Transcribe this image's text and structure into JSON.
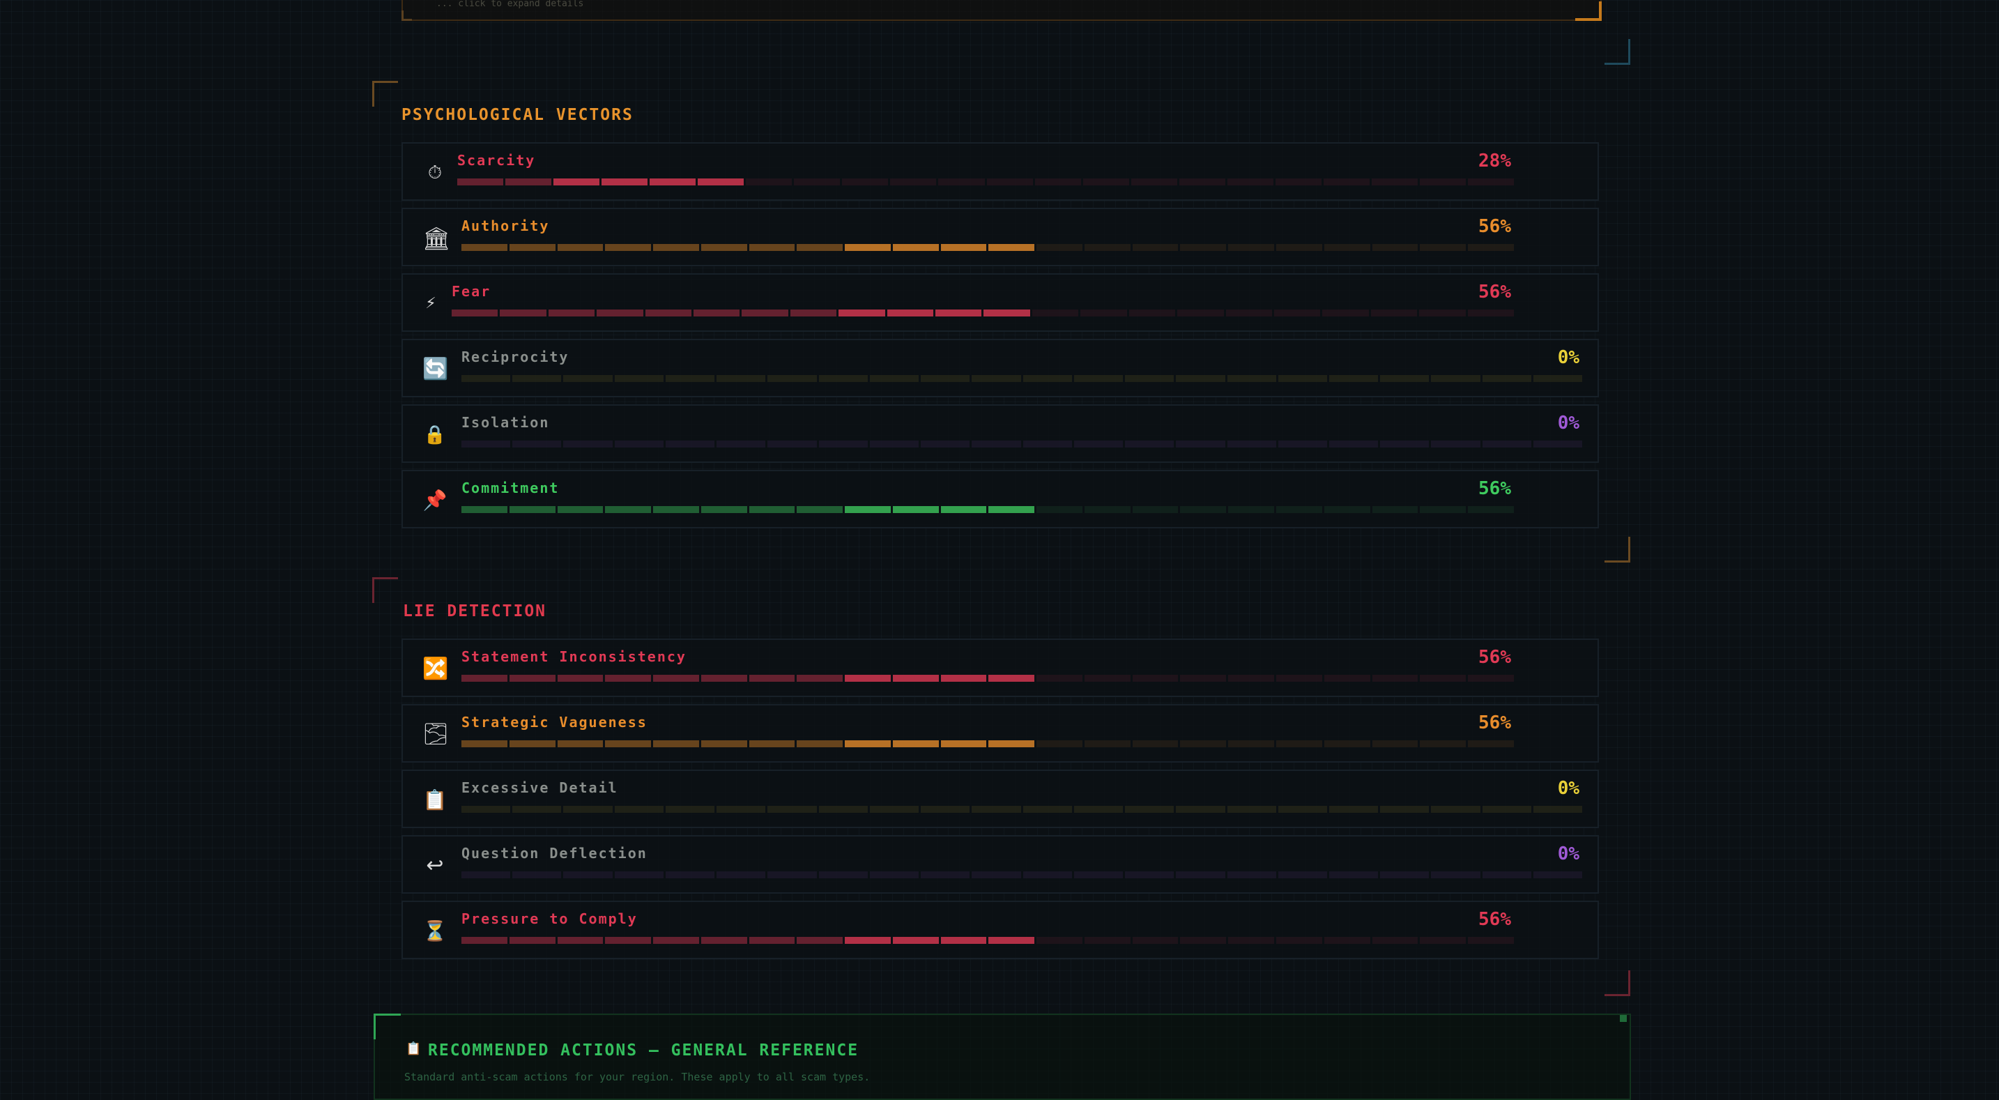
{
  "top_panel": {
    "text": "... click to expand details"
  },
  "colors": {
    "red": "#e13a55",
    "orange": "#e88d2c",
    "yellow": "#e9d038",
    "purple": "#a05ad6",
    "green": "#3fcb5f",
    "gray": "#8a8f8c"
  },
  "psychological_vectors": {
    "title": "PSYCHOLOGICAL VECTORS",
    "items": [
      {
        "label": "Scarcity",
        "percent": "28%",
        "value": 0.28,
        "icon": "stopwatch-icon",
        "glyph": "⏱",
        "color": "red"
      },
      {
        "label": "Authority",
        "percent": "56%",
        "value": 0.56,
        "icon": "bank-icon",
        "glyph": "🏛",
        "color": "orange"
      },
      {
        "label": "Fear",
        "percent": "56%",
        "value": 0.56,
        "icon": "lightning-icon",
        "glyph": "⚡",
        "color": "red"
      },
      {
        "label": "Reciprocity",
        "percent": "0%",
        "value": 0,
        "icon": "refresh-icon",
        "glyph": "🔄",
        "color": "yellow"
      },
      {
        "label": "Isolation",
        "percent": "0%",
        "value": 0,
        "icon": "lock-icon",
        "glyph": "🔒",
        "color": "purple"
      },
      {
        "label": "Commitment",
        "percent": "56%",
        "value": 0.56,
        "icon": "pushpin-icon",
        "glyph": "📌",
        "color": "green"
      }
    ]
  },
  "lie_detection": {
    "title": "LIE DETECTION",
    "items": [
      {
        "label": "Statement Inconsistency",
        "percent": "56%",
        "value": 0.56,
        "icon": "shuffle-icon",
        "glyph": "🔀",
        "color": "red"
      },
      {
        "label": "Strategic Vagueness",
        "percent": "56%",
        "value": 0.56,
        "icon": "fog-icon",
        "glyph": "🌫",
        "color": "orange"
      },
      {
        "label": "Excessive Detail",
        "percent": "0%",
        "value": 0,
        "icon": "clipboard-icon",
        "glyph": "📋",
        "color": "yellow"
      },
      {
        "label": "Question Deflection",
        "percent": "0%",
        "value": 0,
        "icon": "return-arrow-icon",
        "glyph": "↩",
        "color": "purple"
      },
      {
        "label": "Pressure to Comply",
        "percent": "56%",
        "value": 0.56,
        "icon": "hourglass-icon",
        "glyph": "⏳",
        "color": "red"
      }
    ]
  },
  "recommended_actions": {
    "title": "RECOMMENDED ACTIONS — GENERAL REFERENCE",
    "icon": "clipboard-icon",
    "glyph": "📋",
    "subtitle": "Standard anti-scam actions for your region. These apply to all scam types."
  }
}
